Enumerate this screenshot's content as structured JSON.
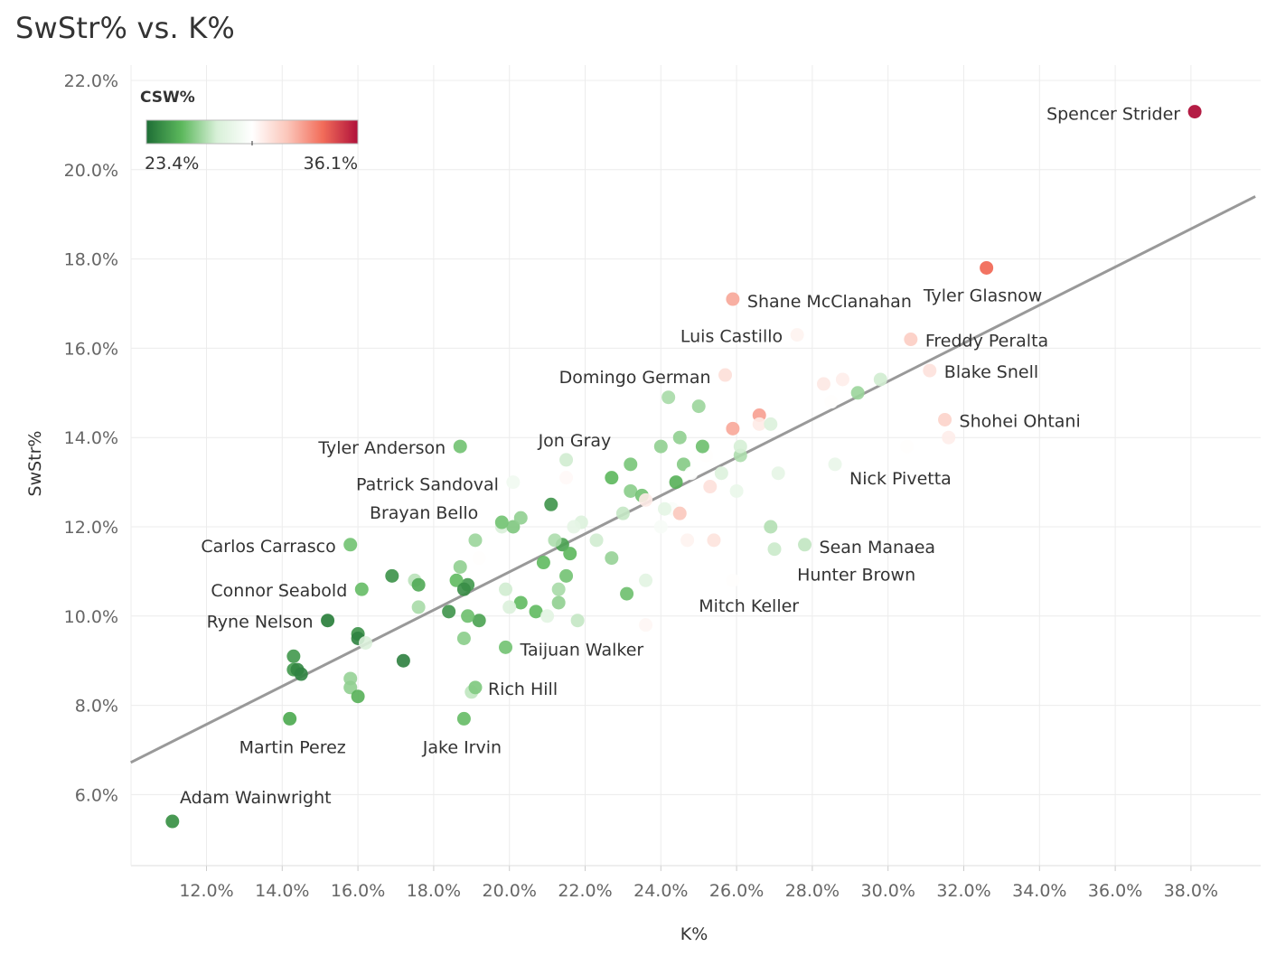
{
  "title": "SwStr% vs. K%",
  "chart_data": {
    "type": "scatter",
    "title": "SwStr% vs. K%",
    "xlabel": "K%",
    "ylabel": "SwStr%",
    "xlim": [
      10,
      39.7
    ],
    "ylim": [
      4.8,
      22.3
    ],
    "x_ticks": [
      "12.0%",
      "14.0%",
      "16.0%",
      "18.0%",
      "20.0%",
      "22.0%",
      "24.0%",
      "26.0%",
      "28.0%",
      "30.0%",
      "32.0%",
      "34.0%",
      "36.0%",
      "38.0%"
    ],
    "x_tick_values": [
      12,
      14,
      16,
      18,
      20,
      22,
      24,
      26,
      28,
      30,
      32,
      34,
      36,
      38
    ],
    "y_ticks": [
      "6.0%",
      "8.0%",
      "10.0%",
      "12.0%",
      "14.0%",
      "16.0%",
      "18.0%",
      "20.0%",
      "22.0%"
    ],
    "y_tick_values": [
      6,
      8,
      10,
      12,
      14,
      16,
      18,
      20,
      22
    ],
    "trendline": {
      "x": [
        10,
        39.7
      ],
      "y": [
        6.72,
        19.4
      ]
    },
    "color_legend": {
      "title": "CSW%",
      "min_label": "23.4%",
      "max_label": "36.1%",
      "min": 23.4,
      "max": 36.1,
      "colors": [
        "#1e6e36",
        "#5cb85c",
        "#d8f0d8",
        "#ffffff",
        "#fbc6ba",
        "#f26d5a",
        "#b0103a"
      ]
    },
    "labeled_points": [
      {
        "name": "Spencer Strider",
        "x": 38.1,
        "y": 21.3,
        "csw": 36.1
      },
      {
        "name": "Tyler Glasnow",
        "x": 32.6,
        "y": 17.8,
        "csw": 34.0
      },
      {
        "name": "Shane McClanahan",
        "x": 25.9,
        "y": 17.1,
        "csw": 32.5
      },
      {
        "name": "Luis Castillo",
        "x": 27.6,
        "y": 16.3,
        "csw": 30.2
      },
      {
        "name": "Freddy Peralta",
        "x": 30.6,
        "y": 16.2,
        "csw": 31.5
      },
      {
        "name": "Blake Snell",
        "x": 31.1,
        "y": 15.5,
        "csw": 30.8
      },
      {
        "name": "Domingo German",
        "x": 25.7,
        "y": 15.4,
        "csw": 30.9
      },
      {
        "name": "Shohei Ohtani",
        "x": 31.5,
        "y": 14.4,
        "csw": 31.3
      },
      {
        "name": "Jon Gray",
        "x": 24.0,
        "y": 13.8,
        "csw": 26.5
      },
      {
        "name": "Tyler Anderson",
        "x": 18.7,
        "y": 13.8,
        "csw": 26.0
      },
      {
        "name": "Nick Pivetta",
        "x": 28.6,
        "y": 13.4,
        "csw": 28.6
      },
      {
        "name": "Patrick Sandoval",
        "x": 20.1,
        "y": 13.0,
        "csw": 29.0
      },
      {
        "name": "Brayan Bello",
        "x": 19.8,
        "y": 12.1,
        "csw": 26.0
      },
      {
        "name": "Carlos Carrasco",
        "x": 15.8,
        "y": 11.6,
        "csw": 26.0
      },
      {
        "name": "Sean Manaea",
        "x": 27.8,
        "y": 11.6,
        "csw": 27.3
      },
      {
        "name": "Connor Seabold",
        "x": 16.1,
        "y": 10.6,
        "csw": 25.8
      },
      {
        "name": "Ryne Nelson",
        "x": 15.2,
        "y": 9.9,
        "csw": 24.0
      },
      {
        "name": "Taijuan Walker",
        "x": 19.9,
        "y": 9.3,
        "csw": 26.0
      },
      {
        "name": "Rich Hill",
        "x": 19.1,
        "y": 8.4,
        "csw": 26.2
      },
      {
        "name": "Martin Perez",
        "x": 14.2,
        "y": 7.7,
        "csw": 25.2
      },
      {
        "name": "Jake Irvin",
        "x": 18.8,
        "y": 7.7,
        "csw": 25.8
      },
      {
        "name": "Adam Wainwright",
        "x": 11.1,
        "y": 5.4,
        "csw": 24.5
      }
    ],
    "annotations": [
      {
        "text": "Hunter Brown",
        "x": 27.6,
        "y": 10.8
      },
      {
        "text": "Mitch Keller",
        "x": 25.0,
        "y": 10.1
      }
    ],
    "unlabeled_points": [
      [
        27.0,
        11.5,
        27.4
      ],
      [
        26.9,
        12.0,
        27.0
      ],
      [
        25.9,
        10.8,
        29.8
      ],
      [
        25.4,
        11.7,
        30.8
      ],
      [
        24.3,
        12.4,
        29.5
      ],
      [
        24.5,
        12.3,
        31.8
      ],
      [
        24.7,
        11.7,
        30.2
      ],
      [
        24.0,
        12.0,
        29.3
      ],
      [
        23.6,
        10.8,
        28.2
      ],
      [
        23.6,
        9.8,
        30.1
      ],
      [
        23.1,
        10.5,
        25.8
      ],
      [
        22.7,
        11.3,
        26.5
      ],
      [
        22.3,
        11.7,
        27.5
      ],
      [
        21.9,
        12.1,
        27.9
      ],
      [
        21.7,
        12.0,
        28.4
      ],
      [
        21.4,
        11.6,
        24.9
      ],
      [
        21.6,
        11.4,
        25.5
      ],
      [
        21.2,
        11.7,
        26.9
      ],
      [
        21.5,
        10.9,
        25.9
      ],
      [
        20.9,
        11.2,
        25.6
      ],
      [
        21.3,
        10.6,
        26.8
      ],
      [
        21.3,
        10.3,
        26.4
      ],
      [
        21.8,
        9.9,
        27.3
      ],
      [
        20.3,
        10.3,
        25.6
      ],
      [
        20.7,
        10.1,
        25.6
      ],
      [
        21.0,
        10.0,
        28.2
      ],
      [
        19.9,
        10.6,
        27.5
      ],
      [
        20.0,
        10.2,
        27.8
      ],
      [
        19.2,
        9.9,
        24.9
      ],
      [
        18.9,
        10.0,
        25.8
      ],
      [
        18.9,
        10.7,
        24.6
      ],
      [
        18.6,
        10.8,
        25.6
      ],
      [
        18.4,
        10.1,
        24.5
      ],
      [
        18.8,
        9.5,
        26.3
      ],
      [
        18.7,
        11.1,
        26.4
      ],
      [
        19.1,
        11.7,
        26.6
      ],
      [
        19.2,
        11.3,
        29.8
      ],
      [
        19.8,
        12.0,
        27.7
      ],
      [
        20.1,
        12.0,
        26.1
      ],
      [
        20.3,
        12.2,
        26.4
      ],
      [
        21.1,
        12.5,
        24.5
      ],
      [
        21.5,
        13.5,
        27.5
      ],
      [
        21.5,
        13.1,
        30.0
      ],
      [
        22.7,
        13.1,
        25.5
      ],
      [
        23.2,
        13.4,
        26.0
      ],
      [
        23.2,
        12.8,
        26.3
      ],
      [
        23.5,
        12.7,
        25.9
      ],
      [
        23.0,
        12.3,
        27.3
      ],
      [
        23.6,
        12.6,
        30.5
      ],
      [
        24.4,
        13.0,
        25.3
      ],
      [
        24.6,
        13.4,
        26.2
      ],
      [
        24.8,
        13.2,
        29.7
      ],
      [
        25.2,
        13.6,
        29.8
      ],
      [
        25.3,
        12.9,
        30.9
      ],
      [
        25.1,
        13.8,
        25.8
      ],
      [
        25.6,
        13.2,
        27.9
      ],
      [
        26.1,
        13.6,
        26.9
      ],
      [
        26.1,
        13.8,
        27.6
      ],
      [
        26.0,
        12.8,
        28.6
      ],
      [
        24.5,
        14.0,
        26.4
      ],
      [
        24.2,
        14.9,
        26.8
      ],
      [
        25.0,
        14.7,
        26.6
      ],
      [
        25.9,
        14.2,
        32.6
      ],
      [
        26.6,
        14.5,
        32.8
      ],
      [
        26.6,
        14.3,
        30.5
      ],
      [
        26.9,
        14.3,
        27.8
      ],
      [
        27.1,
        13.2,
        28.4
      ],
      [
        28.3,
        15.2,
        30.6
      ],
      [
        28.8,
        15.3,
        30.4
      ],
      [
        28.5,
        14.8,
        29.8
      ],
      [
        29.2,
        15.0,
        26.6
      ],
      [
        29.8,
        15.3,
        27.5
      ],
      [
        30.5,
        13.8,
        29.8
      ],
      [
        31.6,
        14.0,
        30.4
      ],
      [
        24.1,
        12.4,
        28.3
      ],
      [
        17.5,
        10.8,
        27.1
      ],
      [
        17.6,
        10.7,
        25.1
      ],
      [
        17.6,
        10.2,
        26.8
      ],
      [
        16.9,
        10.9,
        24.4
      ],
      [
        17.2,
        9.0,
        23.9
      ],
      [
        16.0,
        9.6,
        24.4
      ],
      [
        16.0,
        9.5,
        24.0
      ],
      [
        16.2,
        9.4,
        27.8
      ],
      [
        15.8,
        8.6,
        26.5
      ],
      [
        15.8,
        8.4,
        26.4
      ],
      [
        16.0,
        8.2,
        25.3
      ],
      [
        14.3,
        9.1,
        24.6
      ],
      [
        14.3,
        8.8,
        24.6
      ],
      [
        14.4,
        8.8,
        24.1
      ],
      [
        14.5,
        8.7,
        24.0
      ],
      [
        19.0,
        8.3,
        27.2
      ],
      [
        18.8,
        10.6,
        24.3
      ]
    ]
  }
}
